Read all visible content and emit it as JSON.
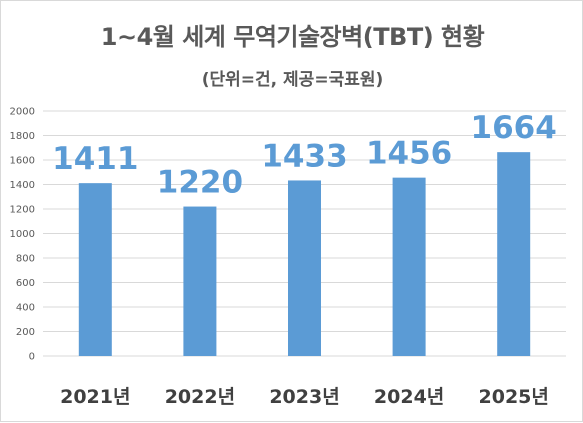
{
  "chart_data": {
    "type": "bar",
    "title": "1~4월 세계 무역기술장벽(TBT) 현황",
    "subtitle": "(단위=건, 제공=국표원)",
    "categories": [
      "2021년",
      "2022년",
      "2023년",
      "2024년",
      "2025년"
    ],
    "values": [
      1411,
      1220,
      1433,
      1456,
      1664
    ],
    "data_labels": [
      "1411",
      "1220",
      "1433",
      "1456",
      "1664"
    ],
    "ylim": [
      0,
      2000
    ],
    "y_ticks": [
      0,
      200,
      400,
      600,
      800,
      1000,
      1200,
      1400,
      1600,
      1800,
      2000
    ],
    "grid": true,
    "legend": "none",
    "bar_color": "#5b9bd5",
    "label_color": "#5b9bd5"
  }
}
